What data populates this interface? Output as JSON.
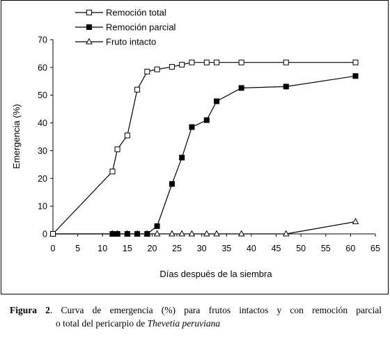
{
  "chart_data": {
    "type": "line",
    "xlabel": "Días después de la siembra",
    "ylabel": "Emergencia (%)",
    "xlim": [
      0,
      65
    ],
    "ylim": [
      0,
      70
    ],
    "xticks": [
      0,
      5,
      10,
      15,
      20,
      25,
      30,
      35,
      40,
      45,
      50,
      55,
      60,
      65
    ],
    "yticks": [
      0,
      10,
      20,
      30,
      40,
      50,
      60,
      70
    ],
    "grid": false,
    "legend_position": "top-left",
    "series": [
      {
        "name": "Remoción total",
        "marker": "open-square",
        "color": "#000000",
        "x": [
          0,
          12,
          13,
          15,
          17,
          19,
          21,
          24,
          26,
          28,
          31,
          33,
          38,
          47,
          61
        ],
        "y": [
          0,
          22.5,
          30.5,
          35.5,
          52,
          58.5,
          59.3,
          60.2,
          61,
          61.8,
          61.8,
          61.8,
          61.8,
          61.8,
          61.8
        ]
      },
      {
        "name": "Remoción parcial",
        "marker": "filled-square",
        "color": "#000000",
        "x": [
          0,
          12,
          12.5,
          13,
          15,
          17,
          19,
          21,
          24,
          26,
          28,
          31,
          33,
          38,
          47,
          61
        ],
        "y": [
          0,
          0,
          0,
          0,
          0,
          0,
          0,
          2.8,
          18,
          27.5,
          38.5,
          41,
          47.8,
          52.6,
          53.1,
          56.9
        ]
      },
      {
        "name": "Fruto intacto",
        "marker": "open-triangle",
        "color": "#000000",
        "x": [
          0,
          12,
          13,
          15,
          17,
          19,
          21,
          24,
          26,
          28,
          31,
          33,
          38,
          47,
          61
        ],
        "y": [
          0,
          0,
          0,
          0,
          0,
          0,
          0,
          0,
          0,
          0,
          0,
          0,
          0,
          0,
          4.4
        ]
      }
    ]
  },
  "caption": {
    "label": "Figura 2",
    "text_line1": ". Curva de emergencia (%) para frutos intactos y con remoción parcial",
    "text_line2_prefix": "o total del pericarpio de ",
    "species": "Thevetia peruviana"
  }
}
